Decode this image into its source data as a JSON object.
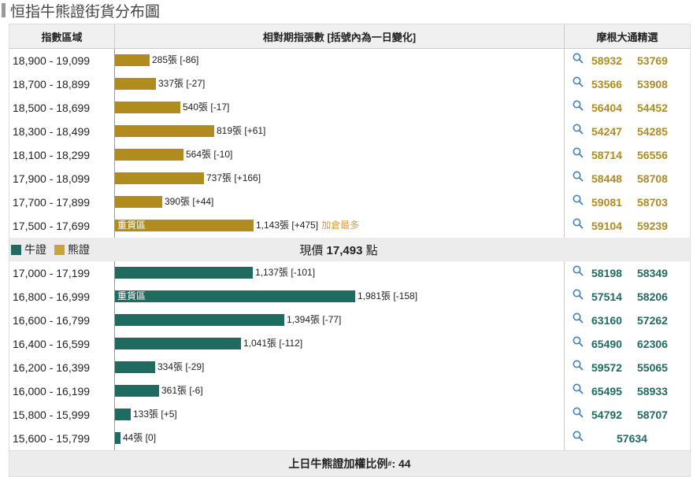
{
  "title": "恒指牛熊證街貨分布圖",
  "headers": {
    "range": "指數區域",
    "bars": "相對期指張數 [括號內為一日變化]",
    "picks": "摩根大通精選"
  },
  "colors": {
    "bear": "#b08c1e",
    "bull": "#1f6b60",
    "note": "#e59a3a"
  },
  "max_count": 1981,
  "bear_rows": [
    {
      "range": "18,900 - 19,099",
      "count": 285,
      "label": "285張 [-86]",
      "inner": "",
      "note": "",
      "codes": [
        "58932",
        "53769"
      ]
    },
    {
      "range": "18,700 - 18,899",
      "count": 337,
      "label": "337張 [-27]",
      "inner": "",
      "note": "",
      "codes": [
        "53566",
        "53908"
      ]
    },
    {
      "range": "18,500 - 18,699",
      "count": 540,
      "label": "540張 [-17]",
      "inner": "",
      "note": "",
      "codes": [
        "56404",
        "54452"
      ]
    },
    {
      "range": "18,300 - 18,499",
      "count": 819,
      "label": "819張 [+61]",
      "inner": "",
      "note": "",
      "codes": [
        "54247",
        "54285"
      ]
    },
    {
      "range": "18,100 - 18,299",
      "count": 564,
      "label": "564張 [-10]",
      "inner": "",
      "note": "",
      "codes": [
        "58714",
        "56556"
      ]
    },
    {
      "range": "17,900 - 18,099",
      "count": 737,
      "label": "737張 [+166]",
      "inner": "",
      "note": "",
      "codes": [
        "58448",
        "58708"
      ]
    },
    {
      "range": "17,700 - 17,899",
      "count": 390,
      "label": "390張 [+44]",
      "inner": "",
      "note": "",
      "codes": [
        "59081",
        "58703"
      ]
    },
    {
      "range": "17,500 - 17,699",
      "count": 1143,
      "label": "1,143張 [+475]",
      "inner": "重貨區",
      "note": "加倉最多",
      "codes": [
        "59104",
        "59239"
      ]
    }
  ],
  "legend": {
    "bull": "牛證",
    "bear": "熊證"
  },
  "current_price": {
    "prefix": "現價",
    "value": "17,493",
    "unit": "點"
  },
  "bull_rows": [
    {
      "range": "17,000 - 17,199",
      "count": 1137,
      "label": "1,137張 [-101]",
      "inner": "",
      "note": "",
      "codes": [
        "58198",
        "58349"
      ]
    },
    {
      "range": "16,800 - 16,999",
      "count": 1981,
      "label": "1,981張 [-158]",
      "inner": "重貨區",
      "note": "",
      "codes": [
        "57514",
        "58206"
      ]
    },
    {
      "range": "16,600 - 16,799",
      "count": 1394,
      "label": "1,394張 [-77]",
      "inner": "",
      "note": "",
      "codes": [
        "63160",
        "57262"
      ]
    },
    {
      "range": "16,400 - 16,599",
      "count": 1041,
      "label": "1,041張 [-112]",
      "inner": "",
      "note": "",
      "codes": [
        "65490",
        "62306"
      ]
    },
    {
      "range": "16,200 - 16,399",
      "count": 334,
      "label": "334張 [-29]",
      "inner": "",
      "note": "",
      "codes": [
        "59572",
        "55065"
      ]
    },
    {
      "range": "16,000 - 16,199",
      "count": 361,
      "label": "361張 [-6]",
      "inner": "",
      "note": "",
      "codes": [
        "65495",
        "58933"
      ]
    },
    {
      "range": "15,800 - 15,999",
      "count": 133,
      "label": "133張 [+5]",
      "inner": "",
      "note": "",
      "codes": [
        "54792",
        "58707"
      ]
    },
    {
      "range": "15,600 - 15,799",
      "count": 44,
      "label": "44張 [0]",
      "inner": "",
      "note": "",
      "codes": [
        "57634"
      ]
    }
  ],
  "footer": {
    "text": "上日牛熊證加權比例",
    "sup": "#",
    "value": ": 44"
  }
}
